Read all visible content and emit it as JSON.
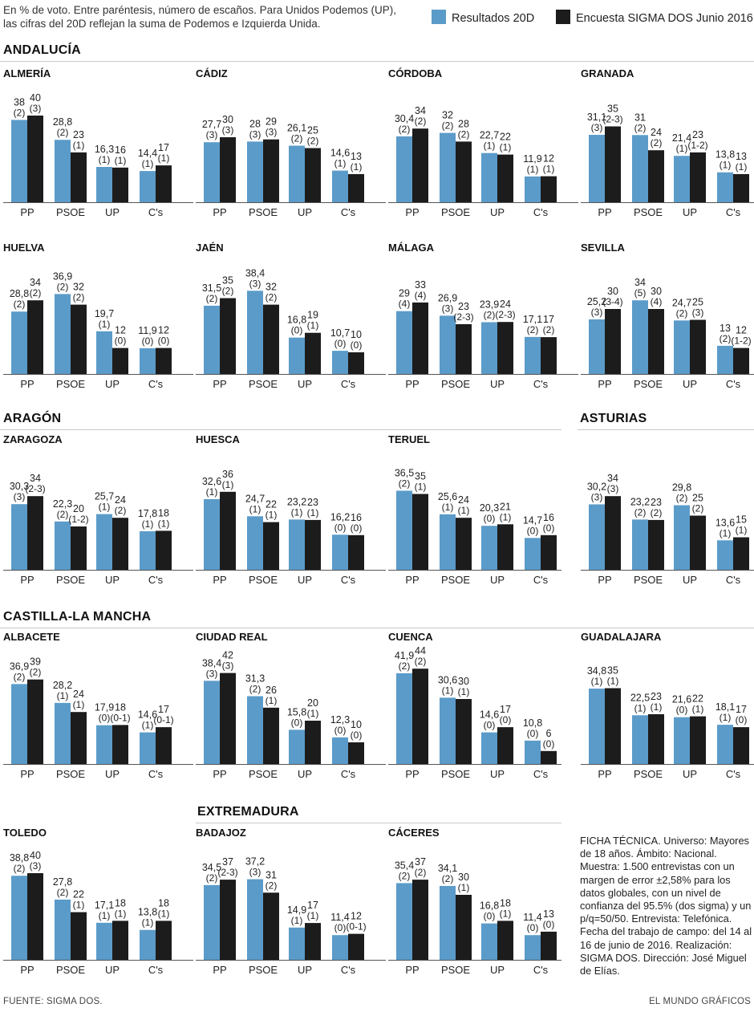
{
  "intro": {
    "line1": "En % de voto. Entre paréntesis, número de escaños. Para Unidos Podemos (UP),",
    "line2": "las cifras del 20D reflejan la suma de Podemos e Izquierda Unida."
  },
  "legend": {
    "results": "Resultados 20D",
    "survey": "Encuesta SIGMA DOS Junio 2016"
  },
  "colors": {
    "results": "#5b9bc9",
    "survey": "#1c1c1c",
    "rule": "#c8c8c8"
  },
  "regions": {
    "andalucia": "ANDALUCÍA",
    "aragon": "ARAGÓN",
    "asturias": "ASTURIAS",
    "castilla": "CASTILLA-LA MANCHA",
    "extremadura": "EXTREMADURA"
  },
  "chart_data": [
    {
      "type": "bar",
      "title": "ALMERÍA",
      "categories": [
        "PP",
        "PSOE",
        "UP",
        "C's"
      ],
      "series": [
        {
          "name": "Resultados 20D",
          "values": [
            38,
            28.8,
            16.3,
            14.4
          ],
          "labels": [
            "38",
            "28,8",
            "16,3",
            "14,4"
          ],
          "seats": [
            "(2)",
            "(2)",
            "(1)",
            "(1)"
          ]
        },
        {
          "name": "Encuesta SIGMA DOS Junio 2016",
          "values": [
            40,
            23,
            16,
            17
          ],
          "labels": [
            "40",
            "23",
            "16",
            "17"
          ],
          "seats": [
            "(3)",
            "(1)",
            "(1)",
            "(1)"
          ]
        }
      ]
    },
    {
      "type": "bar",
      "title": "CÁDIZ",
      "categories": [
        "PP",
        "PSOE",
        "UP",
        "C's"
      ],
      "series": [
        {
          "name": "Resultados 20D",
          "values": [
            27.7,
            28,
            26.1,
            14.6
          ],
          "labels": [
            "27,7",
            "28",
            "26,1",
            "14,6"
          ],
          "seats": [
            "(3)",
            "(3)",
            "(2)",
            "(1)"
          ]
        },
        {
          "name": "Encuesta SIGMA DOS Junio 2016",
          "values": [
            30,
            29,
            25,
            13
          ],
          "labels": [
            "30",
            "29",
            "25",
            "13"
          ],
          "seats": [
            "(3)",
            "(3)",
            "(2)",
            "(1)"
          ]
        }
      ]
    },
    {
      "type": "bar",
      "title": "CÓRDOBA",
      "categories": [
        "PP",
        "PSOE",
        "UP",
        "C's"
      ],
      "series": [
        {
          "name": "Resultados 20D",
          "values": [
            30.4,
            32,
            22.7,
            11.9
          ],
          "labels": [
            "30,4",
            "32",
            "22,7",
            "11,9"
          ],
          "seats": [
            "(2)",
            "(2)",
            "(1)",
            "(1)"
          ]
        },
        {
          "name": "Encuesta SIGMA DOS Junio 2016",
          "values": [
            34,
            28,
            22,
            12
          ],
          "labels": [
            "34",
            "28",
            "22",
            "12"
          ],
          "seats": [
            "(2)",
            "(2)",
            "(1)",
            "(1)"
          ]
        }
      ]
    },
    {
      "type": "bar",
      "title": "GRANADA",
      "categories": [
        "PP",
        "PSOE",
        "UP",
        "C's"
      ],
      "series": [
        {
          "name": "Resultados 20D",
          "values": [
            31.1,
            31,
            21.4,
            13.8
          ],
          "labels": [
            "31,1",
            "31",
            "21,4",
            "13,8"
          ],
          "seats": [
            "(3)",
            "(2)",
            "(1)",
            "(1)"
          ]
        },
        {
          "name": "Encuesta SIGMA DOS Junio 2016",
          "values": [
            35,
            24,
            23,
            13
          ],
          "labels": [
            "35",
            "24",
            "23",
            "13"
          ],
          "seats": [
            "(2-3)",
            "(2)",
            "(1-2)",
            "(1)"
          ]
        }
      ]
    },
    {
      "type": "bar",
      "title": "HUELVA",
      "categories": [
        "PP",
        "PSOE",
        "UP",
        "C's"
      ],
      "series": [
        {
          "name": "Resultados 20D",
          "values": [
            28.8,
            36.9,
            19.7,
            11.9
          ],
          "labels": [
            "28,8",
            "36,9",
            "19,7",
            "11,9"
          ],
          "seats": [
            "(2)",
            "(2)",
            "(1)",
            "(0)"
          ]
        },
        {
          "name": "Encuesta SIGMA DOS Junio 2016",
          "values": [
            34,
            32,
            12,
            12
          ],
          "labels": [
            "34",
            "32",
            "12",
            "12"
          ],
          "seats": [
            "(2)",
            "(2)",
            "(0)",
            "(0)"
          ]
        }
      ]
    },
    {
      "type": "bar",
      "title": "JAÉN",
      "categories": [
        "PP",
        "PSOE",
        "UP",
        "C's"
      ],
      "series": [
        {
          "name": "Resultados 20D",
          "values": [
            31.5,
            38.4,
            16.8,
            10.7
          ],
          "labels": [
            "31,5",
            "38,4",
            "16,8",
            "10,7"
          ],
          "seats": [
            "(2)",
            "(3)",
            "(0)",
            "(0)"
          ]
        },
        {
          "name": "Encuesta SIGMA DOS Junio 2016",
          "values": [
            35,
            32,
            19,
            10
          ],
          "labels": [
            "35",
            "32",
            "19",
            "10"
          ],
          "seats": [
            "(2)",
            "(2)",
            "(1)",
            "(0)"
          ]
        }
      ]
    },
    {
      "type": "bar",
      "title": "MÁLAGA",
      "categories": [
        "PP",
        "PSOE",
        "UP",
        "C's"
      ],
      "series": [
        {
          "name": "Resultados 20D",
          "values": [
            29,
            26.9,
            23.9,
            17.1
          ],
          "labels": [
            "29",
            "26,9",
            "23,9",
            "17,1"
          ],
          "seats": [
            "(4)",
            "(3)",
            "(2)",
            "(2)"
          ]
        },
        {
          "name": "Encuesta SIGMA DOS Junio 2016",
          "values": [
            33,
            23,
            24,
            17
          ],
          "labels": [
            "33",
            "23",
            "24",
            "17"
          ],
          "seats": [
            "(4)",
            "(2-3)",
            "(2-3)",
            "(2)"
          ]
        }
      ]
    },
    {
      "type": "bar",
      "title": "SEVILLA",
      "categories": [
        "PP",
        "PSOE",
        "UP",
        "C's"
      ],
      "series": [
        {
          "name": "Resultados 20D",
          "values": [
            25.2,
            34,
            24.7,
            13
          ],
          "labels": [
            "25,2",
            "34",
            "24,7",
            "13"
          ],
          "seats": [
            "(3)",
            "(5)",
            "(2)",
            "(2)"
          ]
        },
        {
          "name": "Encuesta SIGMA DOS Junio 2016",
          "values": [
            30,
            30,
            25,
            12
          ],
          "labels": [
            "30",
            "30",
            "25",
            "12"
          ],
          "seats": [
            "(3-4)",
            "(4)",
            "(3)",
            "(1-2)"
          ]
        }
      ]
    },
    {
      "type": "bar",
      "title": "ZARAGOZA",
      "categories": [
        "PP",
        "PSOE",
        "UP",
        "C's"
      ],
      "series": [
        {
          "name": "Resultados 20D",
          "values": [
            30.3,
            22.3,
            25.7,
            17.8
          ],
          "labels": [
            "30,3",
            "22,3",
            "25,7",
            "17,8"
          ],
          "seats": [
            "(3)",
            "(2)",
            "(1)",
            "(1)"
          ]
        },
        {
          "name": "Encuesta SIGMA DOS Junio 2016",
          "values": [
            34,
            20,
            24,
            18
          ],
          "labels": [
            "34",
            "20",
            "24",
            "18"
          ],
          "seats": [
            "(2-3)",
            "(1-2)",
            "(2)",
            "(1)"
          ]
        }
      ]
    },
    {
      "type": "bar",
      "title": "HUESCA",
      "categories": [
        "PP",
        "PSOE",
        "UP",
        "C's"
      ],
      "series": [
        {
          "name": "Resultados 20D",
          "values": [
            32.6,
            24.7,
            23.2,
            16.2
          ],
          "labels": [
            "32,6",
            "24,7",
            "23,2",
            "16,2"
          ],
          "seats": [
            "(1)",
            "(1)",
            "(1)",
            "(0)"
          ]
        },
        {
          "name": "Encuesta SIGMA DOS Junio 2016",
          "values": [
            36,
            22,
            23,
            16
          ],
          "labels": [
            "36",
            "22",
            "23",
            "16"
          ],
          "seats": [
            "(1)",
            "(1)",
            "(1)",
            "(0)"
          ]
        }
      ]
    },
    {
      "type": "bar",
      "title": "TERUEL",
      "categories": [
        "PP",
        "PSOE",
        "UP",
        "C's"
      ],
      "series": [
        {
          "name": "Resultados 20D",
          "values": [
            36.5,
            25.6,
            20.3,
            14.7
          ],
          "labels": [
            "36,5",
            "25,6",
            "20,3",
            "14,7"
          ],
          "seats": [
            "(2)",
            "(1)",
            "(0)",
            "(0)"
          ]
        },
        {
          "name": "Encuesta SIGMA DOS Junio 2016",
          "values": [
            35,
            24,
            21,
            16
          ],
          "labels": [
            "35",
            "24",
            "21",
            "16"
          ],
          "seats": [
            "(1)",
            "(1)",
            "(1)",
            "(0)"
          ]
        }
      ]
    },
    {
      "type": "bar",
      "title": "",
      "categories": [
        "PP",
        "PSOE",
        "UP",
        "C's"
      ],
      "series": [
        {
          "name": "Resultados 20D",
          "values": [
            30.2,
            23.2,
            29.8,
            13.6
          ],
          "labels": [
            "30,2",
            "23,2",
            "29,8",
            "13,6"
          ],
          "seats": [
            "(3)",
            "(2)",
            "(2)",
            "(1)"
          ]
        },
        {
          "name": "Encuesta SIGMA DOS Junio 2016",
          "values": [
            34,
            23,
            25,
            15
          ],
          "labels": [
            "34",
            "23",
            "25",
            "15"
          ],
          "seats": [
            "(3)",
            "(2)",
            "(2)",
            "(1)"
          ]
        }
      ]
    },
    {
      "type": "bar",
      "title": "ALBACETE",
      "categories": [
        "PP",
        "PSOE",
        "UP",
        "C's"
      ],
      "series": [
        {
          "name": "Resultados 20D",
          "values": [
            36.9,
            28.2,
            17.9,
            14.6
          ],
          "labels": [
            "36,9",
            "28,2",
            "17,9",
            "14,6"
          ],
          "seats": [
            "(2)",
            "(1)",
            "(0)",
            "(1)"
          ]
        },
        {
          "name": "Encuesta SIGMA DOS Junio 2016",
          "values": [
            39,
            24,
            18,
            17
          ],
          "labels": [
            "39",
            "24",
            "18",
            "17"
          ],
          "seats": [
            "(2)",
            "(1)",
            "(0-1)",
            "(0-1)"
          ]
        }
      ]
    },
    {
      "type": "bar",
      "title": "CIUDAD REAL",
      "categories": [
        "PP",
        "PSOE",
        "UP",
        "C's"
      ],
      "series": [
        {
          "name": "Resultados 20D",
          "values": [
            38.4,
            31.3,
            15.8,
            12.3
          ],
          "labels": [
            "38,4",
            "31,3",
            "15,8",
            "12,3"
          ],
          "seats": [
            "(3)",
            "(2)",
            "(0)",
            "(0)"
          ]
        },
        {
          "name": "Encuesta SIGMA DOS Junio 2016",
          "values": [
            42,
            26,
            20,
            10
          ],
          "labels": [
            "42",
            "26",
            "20",
            "10"
          ],
          "seats": [
            "(3)",
            "(1)",
            "(1)",
            "(0)"
          ]
        }
      ]
    },
    {
      "type": "bar",
      "title": "CUENCA",
      "categories": [
        "PP",
        "PSOE",
        "UP",
        "C's"
      ],
      "series": [
        {
          "name": "Resultados 20D",
          "values": [
            41.9,
            30.6,
            14.6,
            10.8
          ],
          "labels": [
            "41,9",
            "30,6",
            "14,6",
            "10,8"
          ],
          "seats": [
            "(2)",
            "(1)",
            "(0)",
            "(0)"
          ]
        },
        {
          "name": "Encuesta SIGMA DOS Junio 2016",
          "values": [
            44,
            30,
            17,
            6
          ],
          "labels": [
            "44",
            "30",
            "17",
            "6"
          ],
          "seats": [
            "(2)",
            "(1)",
            "(0)",
            "(0)"
          ]
        }
      ]
    },
    {
      "type": "bar",
      "title": "GUADALAJARA",
      "categories": [
        "PP",
        "PSOE",
        "UP",
        "C's"
      ],
      "series": [
        {
          "name": "Resultados 20D",
          "values": [
            34.8,
            22.5,
            21.6,
            18.1
          ],
          "labels": [
            "34,8",
            "22,5",
            "21,6",
            "18,1"
          ],
          "seats": [
            "(1)",
            "(1)",
            "(0)",
            "(1)"
          ]
        },
        {
          "name": "Encuesta SIGMA DOS Junio 2016",
          "values": [
            35,
            23,
            22,
            17
          ],
          "labels": [
            "35",
            "23",
            "22",
            "17"
          ],
          "seats": [
            "(1)",
            "(1)",
            "(1)",
            "(0)"
          ]
        }
      ]
    },
    {
      "type": "bar",
      "title": "TOLEDO",
      "categories": [
        "PP",
        "PSOE",
        "UP",
        "C's"
      ],
      "series": [
        {
          "name": "Resultados 20D",
          "values": [
            38.8,
            27.8,
            17.1,
            13.8
          ],
          "labels": [
            "38,8",
            "27,8",
            "17,1",
            "13,8"
          ],
          "seats": [
            "(2)",
            "(2)",
            "(1)",
            "(1)"
          ]
        },
        {
          "name": "Encuesta SIGMA DOS Junio 2016",
          "values": [
            40,
            22,
            18,
            18
          ],
          "labels": [
            "40",
            "22",
            "18",
            "18"
          ],
          "seats": [
            "(3)",
            "(1)",
            "(1)",
            "(1)"
          ]
        }
      ]
    },
    {
      "type": "bar",
      "title": "BADAJOZ",
      "categories": [
        "PP",
        "PSOE",
        "UP",
        "C's"
      ],
      "series": [
        {
          "name": "Resultados 20D",
          "values": [
            34.5,
            37.2,
            14.9,
            11.4
          ],
          "labels": [
            "34,5",
            "37,2",
            "14,9",
            "11,4"
          ],
          "seats": [
            "(2)",
            "(3)",
            "(1)",
            "(0)"
          ]
        },
        {
          "name": "Encuesta SIGMA DOS Junio 2016",
          "values": [
            37,
            31,
            17,
            12
          ],
          "labels": [
            "37",
            "31",
            "17",
            "12"
          ],
          "seats": [
            "(2-3)",
            "(2)",
            "(1)",
            "(0-1)"
          ]
        }
      ]
    },
    {
      "type": "bar",
      "title": "CÁCERES",
      "categories": [
        "PP",
        "PSOE",
        "UP",
        "C's"
      ],
      "series": [
        {
          "name": "Resultados 20D",
          "values": [
            35.4,
            34.1,
            16.8,
            11.4
          ],
          "labels": [
            "35,4",
            "34,1",
            "16,8",
            "11,4"
          ],
          "seats": [
            "(2)",
            "(2)",
            "(0)",
            "(0)"
          ]
        },
        {
          "name": "Encuesta SIGMA DOS Junio 2016",
          "values": [
            37,
            30,
            18,
            13
          ],
          "labels": [
            "37",
            "30",
            "18",
            "13"
          ],
          "seats": [
            "(2)",
            "(1)",
            "(1)",
            "(0)"
          ]
        }
      ]
    }
  ],
  "ficha": "FICHA TÉCNICA. Universo: Mayores de 18 años. Ámbito: Nacional. Muestra: 1.500 entrevistas con un margen de error ±2,58% para los datos globales, con un nivel de confianza del 95.5% (dos sigma) y un p/q=50/50. Entrevista: Telefónica. Fecha del trabajo de campo: del 14 al 16 de junio de 2016. Realización: SIGMA DOS. Dirección: José Miguel de Elías.",
  "footer": {
    "source": "FUENTE: SIGMA DOS.",
    "credit": "EL MUNDO GRÁFICOS"
  }
}
